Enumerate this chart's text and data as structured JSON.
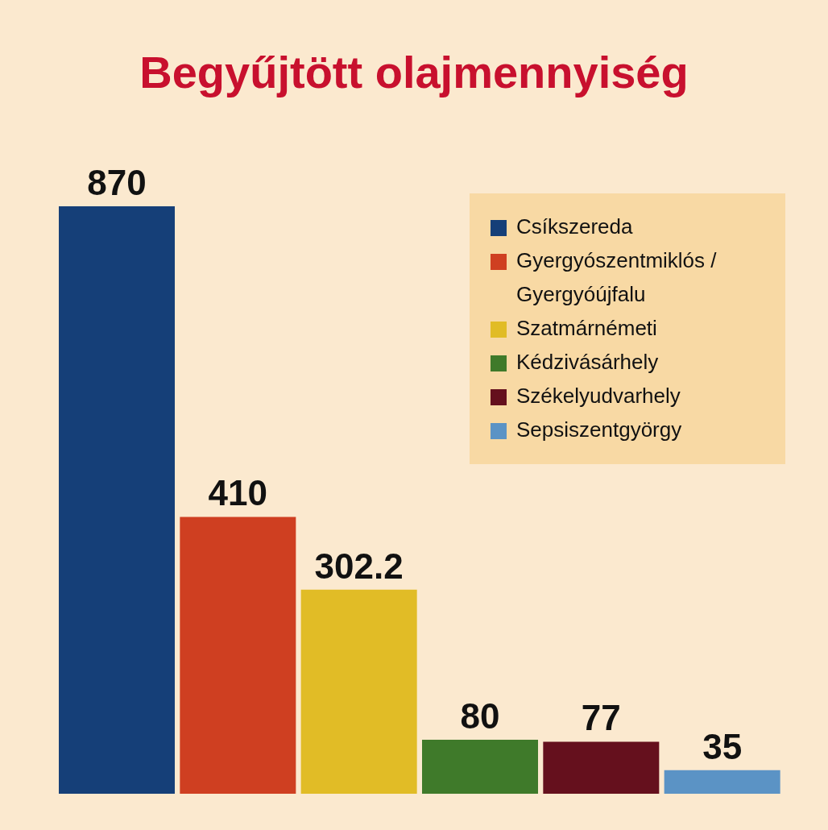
{
  "chart_data": {
    "type": "bar",
    "title": "Begyűjtött olajmennyiség",
    "categories": [
      null,
      null,
      null,
      null,
      null,
      null
    ],
    "series": [
      {
        "name": "Csíkszereda",
        "color": "#153f78",
        "values": [
          870,
          null,
          null,
          null,
          null,
          null
        ]
      },
      {
        "name": "Gyergyószentmiklós / Gyergyóújfalu",
        "color": "#cf3f21",
        "values": [
          null,
          410,
          null,
          null,
          null,
          null
        ]
      },
      {
        "name": "Szatmárnémeti",
        "color": "#e1bc26",
        "values": [
          null,
          null,
          302.2,
          null,
          null,
          null
        ]
      },
      {
        "name": "Kédzivásárhely",
        "color": "#3f7a2a",
        "values": [
          null,
          null,
          null,
          80,
          null,
          null
        ]
      },
      {
        "name": "Székelyudvarhely",
        "color": "#65101d",
        "values": [
          null,
          null,
          null,
          null,
          77,
          null
        ]
      },
      {
        "name": "Sepsiszentgyörgy",
        "color": "#5b93c5",
        "values": [
          null,
          null,
          null,
          null,
          null,
          35
        ]
      }
    ],
    "stacked": true,
    "data_labels": true,
    "tick_labels": false,
    "legend": "top right"
  }
}
